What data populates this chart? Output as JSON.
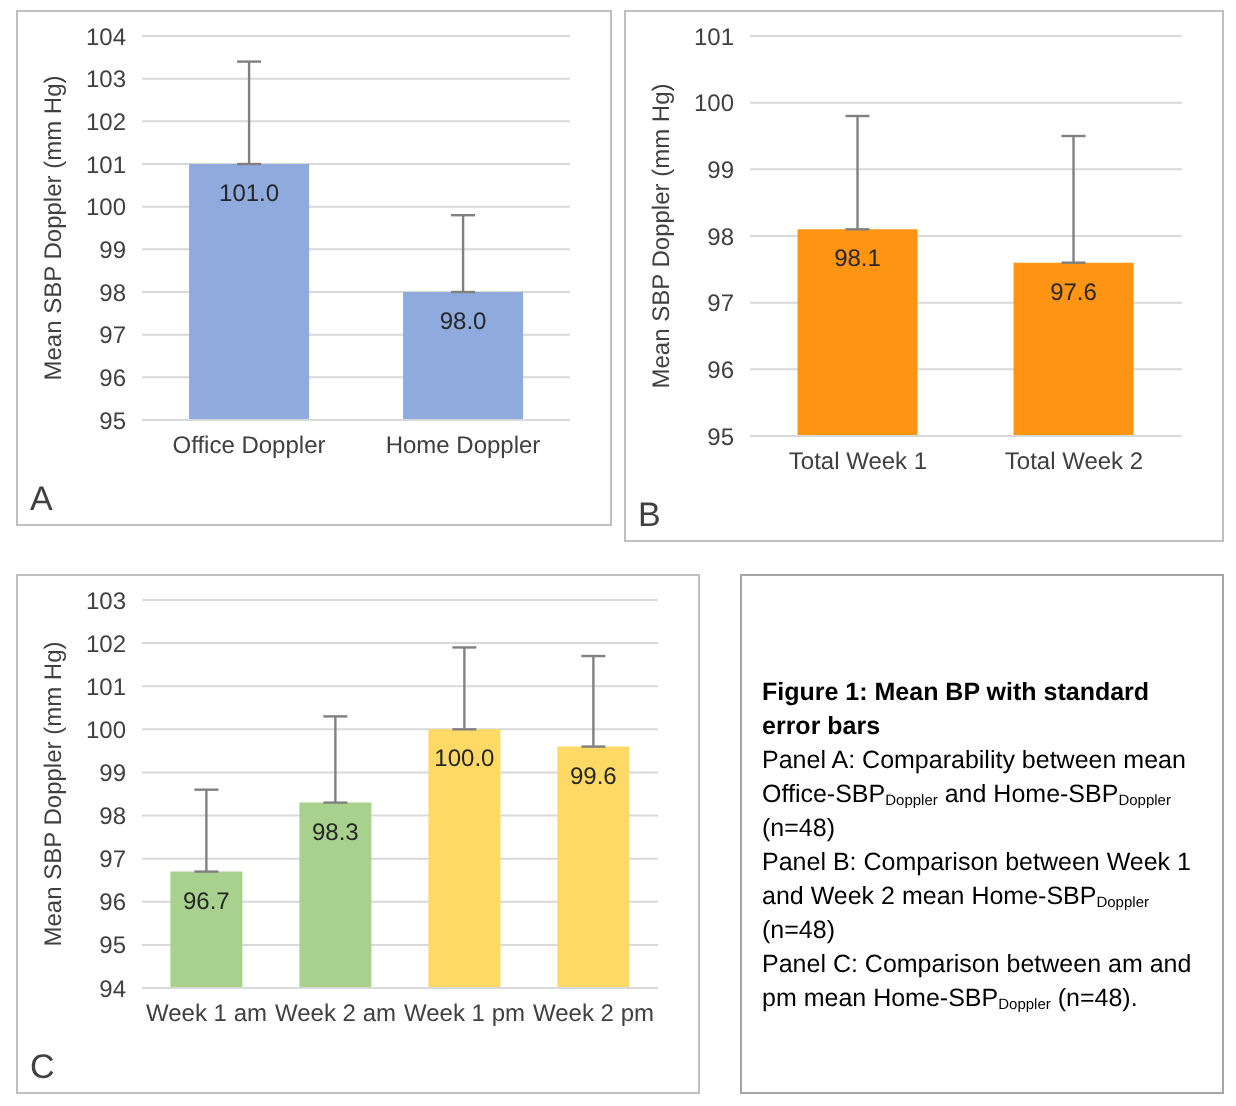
{
  "chart_data": [
    {
      "type": "bar",
      "ylabel": "Mean SBP Doppler (mm Hg)",
      "categories": [
        "Office Doppler",
        "Home Doppler"
      ],
      "values": [
        101.0,
        98.0
      ],
      "value_labels": [
        "101.0",
        "98.0"
      ],
      "errors": [
        [
          101.0,
          103.4
        ],
        [
          98.0,
          99.8
        ]
      ],
      "color": "#8faadc",
      "ylim": [
        95,
        104
      ],
      "yticks": [
        95,
        96,
        97,
        98,
        99,
        100,
        101,
        102,
        103,
        104
      ],
      "grid": "y",
      "annotations": [
        "A"
      ]
    },
    {
      "type": "bar",
      "ylabel": "Mean SBP Doppler (mm Hg)",
      "categories": [
        "Total Week 1",
        "Total Week 2"
      ],
      "values": [
        98.1,
        97.6
      ],
      "value_labels": [
        "98.1",
        "97.6"
      ],
      "errors": [
        [
          98.1,
          99.8
        ],
        [
          97.6,
          99.5
        ]
      ],
      "color": "#ff9512",
      "ylim": [
        95,
        101
      ],
      "yticks": [
        95,
        96,
        97,
        98,
        99,
        100,
        101
      ],
      "grid": "y",
      "annotations": [
        "B"
      ]
    },
    {
      "type": "bar",
      "ylabel": "Mean SBP Doppler (mm Hg)",
      "categories": [
        "Week 1 am",
        "Week 2 am",
        "Week 1 pm",
        "Week 2 pm"
      ],
      "values": [
        96.7,
        98.3,
        100.0,
        99.6
      ],
      "value_labels": [
        "96.7",
        "98.3",
        "100.0",
        "99.6"
      ],
      "errors": [
        [
          96.7,
          98.6
        ],
        [
          98.3,
          100.3
        ],
        [
          100.0,
          101.9
        ],
        [
          99.6,
          101.7
        ]
      ],
      "colors": [
        "#a9d18e",
        "#a9d18e",
        "#ffd966",
        "#ffd966"
      ],
      "ylim": [
        94,
        103
      ],
      "yticks": [
        94,
        95,
        96,
        97,
        98,
        99,
        100,
        101,
        102,
        103
      ],
      "grid": "y",
      "annotations": [
        "C"
      ]
    },
    {
      "type": "other",
      "title": "Figure 1: Mean BP with standard error bars",
      "annotations": [
        "Panel A: Comparability between mean Office-SBP$_{Doppler}$ and Home-SBP$_{Doppler}$ (n=48)",
        "Panel B: Comparison between Week 1 and Week 2 mean Home-SBP$_{Doppler}$ (n=48)",
        "Panel C: Comparison between am and pm mean Home-SBP$_{Doppler}$ (n=48)."
      ]
    }
  ]
}
